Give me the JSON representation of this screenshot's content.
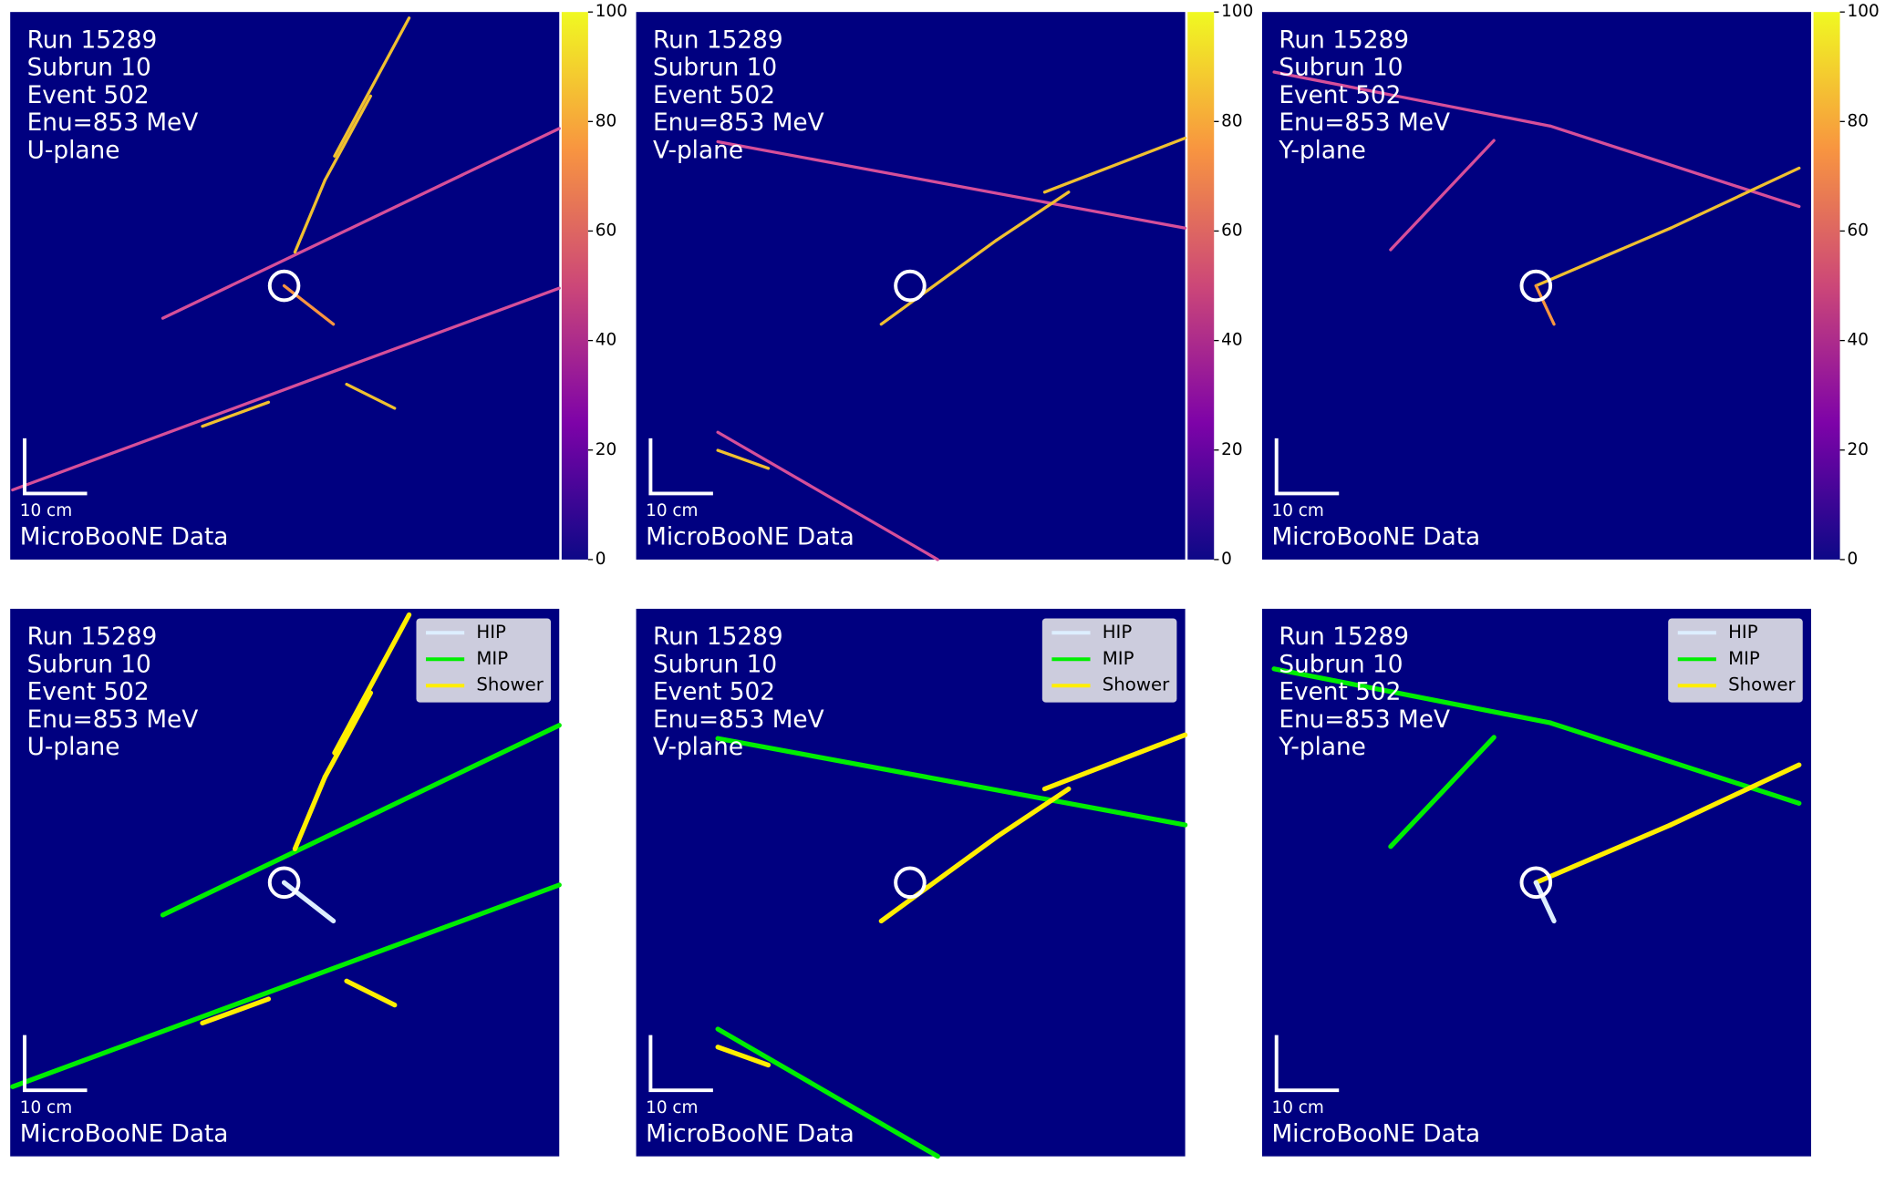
{
  "panels": [
    {
      "lines": [
        "Run 15289",
        "Subrun 10",
        "Event 502",
        "Enu=853 MeV",
        "U-plane"
      ],
      "scale": "10 cm",
      "label": "MicroBooNE Data"
    },
    {
      "lines": [
        "Run 15289",
        "Subrun 10",
        "Event 502",
        "Enu=853 MeV",
        "V-plane"
      ],
      "scale": "10 cm",
      "label": "MicroBooNE Data"
    },
    {
      "lines": [
        "Run 15289",
        "Subrun 10",
        "Event 502",
        "Enu=853 MeV",
        "Y-plane"
      ],
      "scale": "10 cm",
      "label": "MicroBooNE Data"
    },
    {
      "lines": [
        "Run 15289",
        "Subrun 10",
        "Event 502",
        "Enu=853 MeV",
        "U-plane"
      ],
      "scale": "10 cm",
      "label": "MicroBooNE Data"
    },
    {
      "lines": [
        "Run 15289",
        "Subrun 10",
        "Event 502",
        "Enu=853 MeV",
        "V-plane"
      ],
      "scale": "10 cm",
      "label": "MicroBooNE Data"
    },
    {
      "lines": [
        "Run 15289",
        "Subrun 10",
        "Event 502",
        "Enu=853 MeV",
        "Y-plane"
      ],
      "scale": "10 cm",
      "label": "MicroBooNE Data"
    }
  ],
  "colorbar": {
    "lim": [
      0,
      100
    ],
    "ticks": [
      0,
      20,
      40,
      60,
      80,
      100
    ],
    "colors": [
      "#0d0887",
      "#7e03a8",
      "#cc4778",
      "#f89540",
      "#f0f921"
    ]
  },
  "legend": [
    {
      "name": "HIP",
      "color": "#ddeeff"
    },
    {
      "name": "MIP",
      "color": "#00ee00"
    },
    {
      "name": "Shower",
      "color": "#ffee00"
    }
  ]
}
